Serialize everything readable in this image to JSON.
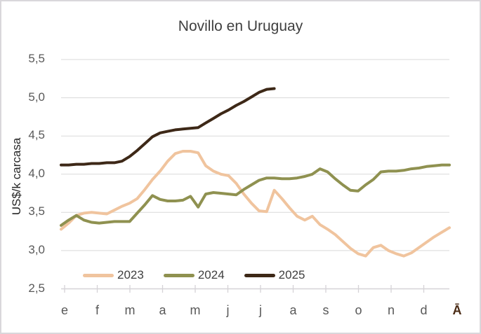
{
  "chart_data": {
    "type": "line",
    "title": "Novillo en Uruguay",
    "ylabel": "US$/k carcasa",
    "x_unit": "week",
    "points_per_year": 52,
    "x_axis": {
      "labels": [
        "e",
        "f",
        "m",
        "a",
        "m",
        "j",
        "j",
        "a",
        "s",
        "o",
        "n",
        "d",
        "Ā"
      ],
      "last_label_is_artifact": true
    },
    "ylim": [
      2.5,
      5.5
    ],
    "ytick_step": 0.5,
    "ytick_labels": [
      "5,5",
      "5,0",
      "4,5",
      "4,0",
      "3,5",
      "3,0",
      "2,5"
    ],
    "grid": true,
    "legend_position": "bottom-inside",
    "colors": {
      "grid": "#D9D9D9",
      "axis": "#D5D3D7",
      "tick_text": "#595959",
      "title_text": "#3F3F3F",
      "frame_border": "#D9D7DB",
      "highlight_label": "#4A2B15"
    },
    "series": [
      {
        "name": "2023",
        "color": "#F0C49E",
        "values": [
          3.28,
          3.36,
          3.46,
          3.49,
          3.5,
          3.49,
          3.48,
          3.53,
          3.58,
          3.62,
          3.68,
          3.8,
          3.93,
          4.04,
          4.17,
          4.27,
          4.3,
          4.3,
          4.28,
          4.11,
          4.04,
          4.0,
          3.98,
          3.88,
          3.74,
          3.62,
          3.52,
          3.51,
          3.79,
          3.68,
          3.56,
          3.45,
          3.4,
          3.45,
          3.34,
          3.28,
          3.21,
          3.12,
          3.03,
          2.96,
          2.93,
          3.04,
          3.07,
          3.0,
          2.96,
          2.93,
          2.97,
          3.04,
          3.11,
          3.18,
          3.24,
          3.3
        ]
      },
      {
        "name": "2024",
        "color": "#8F9150",
        "values": [
          3.33,
          3.4,
          3.46,
          3.4,
          3.37,
          3.36,
          3.37,
          3.38,
          3.38,
          3.38,
          3.49,
          3.6,
          3.72,
          3.67,
          3.65,
          3.65,
          3.66,
          3.71,
          3.57,
          3.74,
          3.76,
          3.75,
          3.74,
          3.73,
          3.8,
          3.86,
          3.92,
          3.95,
          3.95,
          3.94,
          3.94,
          3.95,
          3.97,
          4.0,
          4.07,
          4.03,
          3.94,
          3.86,
          3.79,
          3.78,
          3.86,
          3.93,
          4.03,
          4.04,
          4.04,
          4.05,
          4.07,
          4.08,
          4.1,
          4.11,
          4.12,
          4.12
        ]
      },
      {
        "name": "2025",
        "color": "#3D2817",
        "values": [
          4.12,
          4.12,
          4.13,
          4.13,
          4.14,
          4.14,
          4.15,
          4.15,
          4.17,
          4.23,
          4.31,
          4.4,
          4.49,
          4.54,
          4.56,
          4.58,
          4.59,
          4.6,
          4.61,
          4.67,
          4.73,
          4.79,
          4.84,
          4.9,
          4.95,
          5.01,
          5.07,
          5.11,
          5.12
        ]
      }
    ]
  }
}
